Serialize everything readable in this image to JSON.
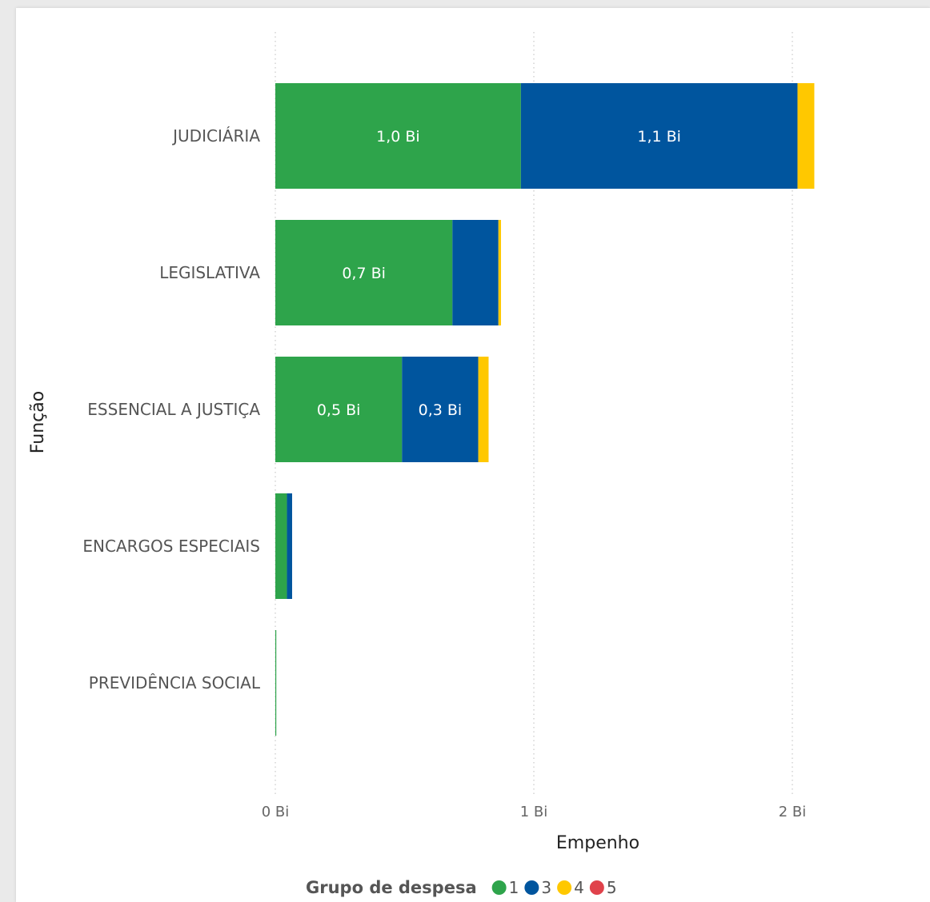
{
  "chart_data": {
    "type": "bar",
    "orientation": "horizontal",
    "stacked": true,
    "categories": [
      "JUDICIÁRIA",
      "LEGISLATIVA",
      "ESSENCIAL A JUSTIÇA",
      "ENCARGOS ESPECIAIS",
      "PREVIDÊNCIA SOCIAL"
    ],
    "series": [
      {
        "name": "1",
        "color": "#2ea44b",
        "values": [
          0.95,
          0.685,
          0.49,
          0.045,
          0.003
        ],
        "labels": [
          "1,0 Bi",
          "0,7 Bi",
          "0,5 Bi",
          "",
          ""
        ]
      },
      {
        "name": "3",
        "color": "#00559e",
        "values": [
          1.07,
          0.178,
          0.295,
          0.02,
          0
        ],
        "labels": [
          "1,1 Bi",
          "",
          "0,3 Bi",
          "",
          ""
        ]
      },
      {
        "name": "4",
        "color": "#ffc800",
        "values": [
          0.065,
          0.01,
          0.04,
          0,
          0
        ],
        "labels": [
          "",
          "",
          "",
          "",
          ""
        ]
      },
      {
        "name": "5",
        "color": "#e0424b",
        "values": [
          0,
          0,
          0,
          0,
          0
        ],
        "labels": [
          "",
          "",
          "",
          "",
          ""
        ]
      }
    ],
    "xlabel": "Empenho",
    "ylabel": "Função",
    "xlim": [
      0,
      2.1
    ],
    "xticks": [
      0,
      1,
      2
    ],
    "xtick_labels": [
      "0 Bi",
      "1 Bi",
      "2 Bi"
    ],
    "grid": "vertical-dotted",
    "legend_title": "Grupo de despesa",
    "legend_position": "bottom"
  }
}
